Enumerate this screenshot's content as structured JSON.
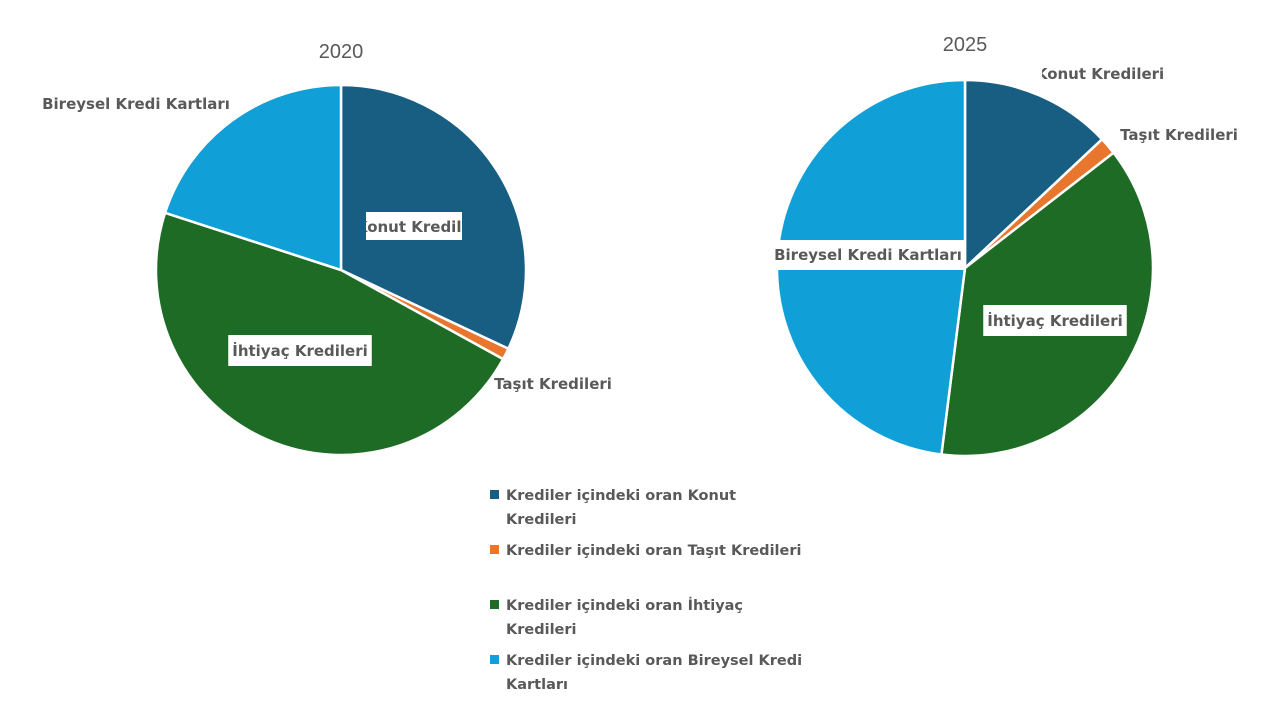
{
  "chart_data": [
    {
      "type": "pie",
      "title": "2020",
      "categories": [
        "Konut Kredileri",
        "Taşıt Kredileri",
        "İhtiyaç Kredileri",
        "Bireysel Kredi Kartları"
      ],
      "values": [
        32,
        1,
        47,
        20
      ]
    },
    {
      "type": "pie",
      "title": "2025",
      "categories": [
        "Konut Kredileri",
        "Taşıt Kredileri",
        "İhtiyaç Kredileri",
        "Bireysel Kredi Kartları"
      ],
      "values": [
        13,
        1.5,
        37.5,
        48
      ]
    }
  ],
  "colors": [
    "#175e82",
    "#e8762c",
    "#1d6b24",
    "#109fd6"
  ],
  "legend": {
    "placement": "bottom",
    "items": [
      "Krediler içindeki oran Konut Kredileri",
      "Krediler içindeki oran Taşıt Kredileri",
      "Krediler içindeki oran İhtiyaç Kredileri",
      "Krediler içindeki oran Bireysel Kredi Kartları"
    ]
  }
}
